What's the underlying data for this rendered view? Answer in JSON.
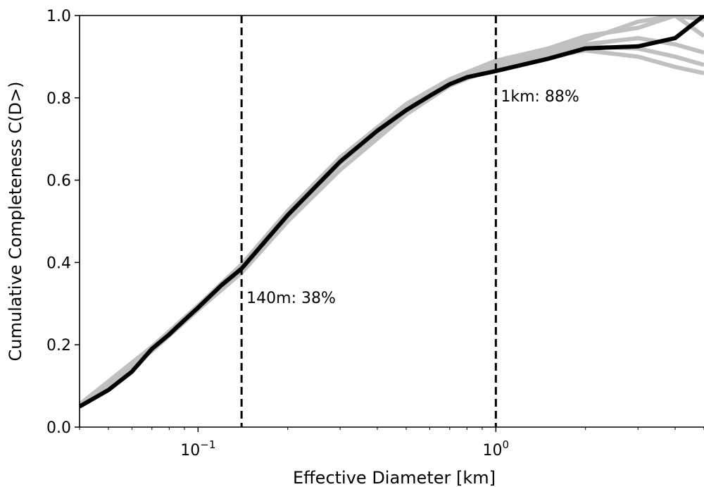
{
  "chart_data": {
    "type": "line",
    "xscale": "log",
    "xlim": [
      0.04,
      5
    ],
    "ylim": [
      0,
      1
    ],
    "xlabel": "Effective Diameter [km]",
    "ylabel": "Cumulative Completeness C(D>)",
    "xticks": [
      {
        "value": 0.1,
        "base": "10",
        "exp": "−1"
      },
      {
        "value": 1,
        "base": "10",
        "exp": "0"
      }
    ],
    "yticks": [
      {
        "value": 0.0,
        "label": "0.0"
      },
      {
        "value": 0.2,
        "label": "0.2"
      },
      {
        "value": 0.4,
        "label": "0.4"
      },
      {
        "value": 0.6,
        "label": "0.6"
      },
      {
        "value": 0.8,
        "label": "0.8"
      },
      {
        "value": 1.0,
        "label": "1.0"
      }
    ],
    "series": [
      {
        "color": "#000000",
        "x": [
          0.04,
          0.05,
          0.06,
          0.07,
          0.08,
          0.09,
          0.1,
          0.12,
          0.14,
          0.2,
          0.3,
          0.4,
          0.5,
          0.6,
          0.7,
          0.8,
          1.0,
          1.5,
          2.0,
          3.0,
          4.0,
          5.0
        ],
        "y": [
          0.05,
          0.09,
          0.135,
          0.19,
          0.225,
          0.26,
          0.29,
          0.345,
          0.385,
          0.515,
          0.645,
          0.72,
          0.77,
          0.805,
          0.833,
          0.85,
          0.865,
          0.895,
          0.92,
          0.925,
          0.945,
          1.0
        ]
      }
    ],
    "ensemble": [
      {
        "color": "#c0c0c0",
        "x": [
          0.04,
          0.07,
          0.1,
          0.14,
          0.2,
          0.3,
          0.5,
          0.7,
          1.0,
          1.5,
          2.0,
          3.0,
          4.0,
          5.0
        ],
        "y": [
          0.05,
          0.185,
          0.285,
          0.375,
          0.5,
          0.625,
          0.76,
          0.83,
          0.875,
          0.905,
          0.93,
          0.945,
          0.93,
          0.91
        ]
      },
      {
        "color": "#c0c0c0",
        "x": [
          0.04,
          0.07,
          0.1,
          0.14,
          0.2,
          0.3,
          0.5,
          0.7,
          1.0,
          1.5,
          2.0,
          3.0,
          4.0,
          5.0
        ],
        "y": [
          0.055,
          0.195,
          0.295,
          0.395,
          0.525,
          0.655,
          0.785,
          0.845,
          0.89,
          0.92,
          0.95,
          0.97,
          1.0,
          0.99
        ]
      },
      {
        "color": "#c0c0c0",
        "x": [
          0.04,
          0.07,
          0.1,
          0.14,
          0.2,
          0.3,
          0.5,
          0.7,
          1.0,
          1.5,
          2.0,
          3.0,
          4.0,
          5.0
        ],
        "y": [
          0.05,
          0.19,
          0.29,
          0.38,
          0.51,
          0.64,
          0.77,
          0.835,
          0.87,
          0.9,
          0.915,
          0.9,
          0.875,
          0.86
        ]
      },
      {
        "color": "#c0c0c0",
        "x": [
          0.04,
          0.07,
          0.1,
          0.14,
          0.2,
          0.3,
          0.5,
          0.7,
          1.0,
          1.5,
          2.0,
          3.0,
          4.0,
          5.0
        ],
        "y": [
          0.05,
          0.192,
          0.292,
          0.39,
          0.52,
          0.65,
          0.78,
          0.842,
          0.882,
          0.915,
          0.94,
          0.985,
          1.0,
          0.95
        ]
      },
      {
        "color": "#c0c0c0",
        "x": [
          0.04,
          0.07,
          0.1,
          0.14,
          0.2,
          0.3,
          0.5,
          0.7,
          1.0,
          1.5,
          2.0,
          3.0,
          4.0,
          5.0
        ],
        "y": [
          0.05,
          0.188,
          0.288,
          0.382,
          0.512,
          0.642,
          0.772,
          0.832,
          0.872,
          0.902,
          0.925,
          0.92,
          0.9,
          0.88
        ]
      }
    ],
    "vlines": [
      {
        "x": 0.14,
        "label": "140m: 38%",
        "label_y": 0.315
      },
      {
        "x": 1.0,
        "label": "1km: 88%",
        "label_y": 0.805
      }
    ]
  }
}
